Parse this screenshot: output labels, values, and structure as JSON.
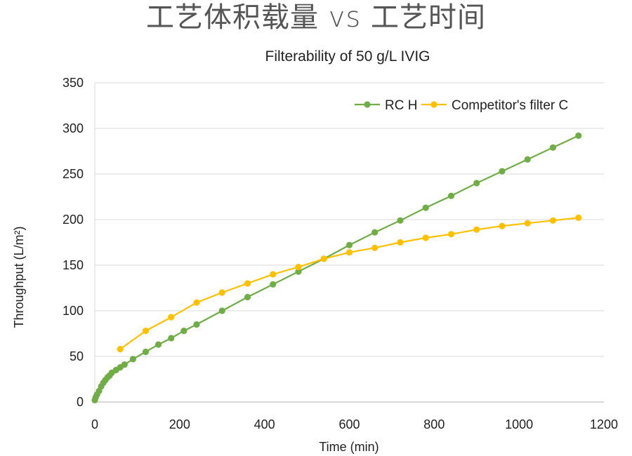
{
  "slide": {
    "title": "工艺体积载量 vs 工艺时间"
  },
  "chart_data": {
    "type": "line",
    "title": "Filterability of 50 g/L IVIG",
    "xlabel": "Time (min)",
    "ylabel": "Throughput (L/m²)",
    "xlim": [
      0,
      1200
    ],
    "ylim": [
      0,
      350
    ],
    "xticks": [
      0,
      200,
      400,
      600,
      800,
      1000,
      1200
    ],
    "yticks": [
      0,
      50,
      100,
      150,
      200,
      250,
      300,
      350
    ],
    "grid": "horizontal",
    "legend_position": "top-right",
    "series": [
      {
        "name": "RC H",
        "color": "#70AD47",
        "x": [
          0,
          2,
          5,
          10,
          15,
          20,
          25,
          30,
          35,
          40,
          50,
          60,
          70,
          90,
          120,
          150,
          180,
          210,
          240,
          300,
          360,
          420,
          480,
          540,
          600,
          660,
          720,
          780,
          840,
          900,
          960,
          1020,
          1080,
          1140
        ],
        "y": [
          2,
          5,
          8,
          12,
          17,
          21,
          24,
          27,
          29,
          32,
          35,
          38,
          41,
          47,
          55,
          63,
          70,
          78,
          85,
          100,
          115,
          129,
          143,
          157,
          172,
          186,
          199,
          213,
          226,
          240,
          253,
          266,
          279,
          292
        ]
      },
      {
        "name": "Competitor's filter C",
        "color": "#FFC000",
        "x": [
          60,
          120,
          180,
          240,
          300,
          360,
          420,
          480,
          540,
          600,
          660,
          720,
          780,
          840,
          900,
          960,
          1020,
          1080,
          1140
        ],
        "y": [
          58,
          78,
          93,
          109,
          120,
          130,
          140,
          148,
          157,
          164,
          169,
          175,
          180,
          184,
          189,
          193,
          196,
          199,
          202
        ]
      }
    ]
  }
}
